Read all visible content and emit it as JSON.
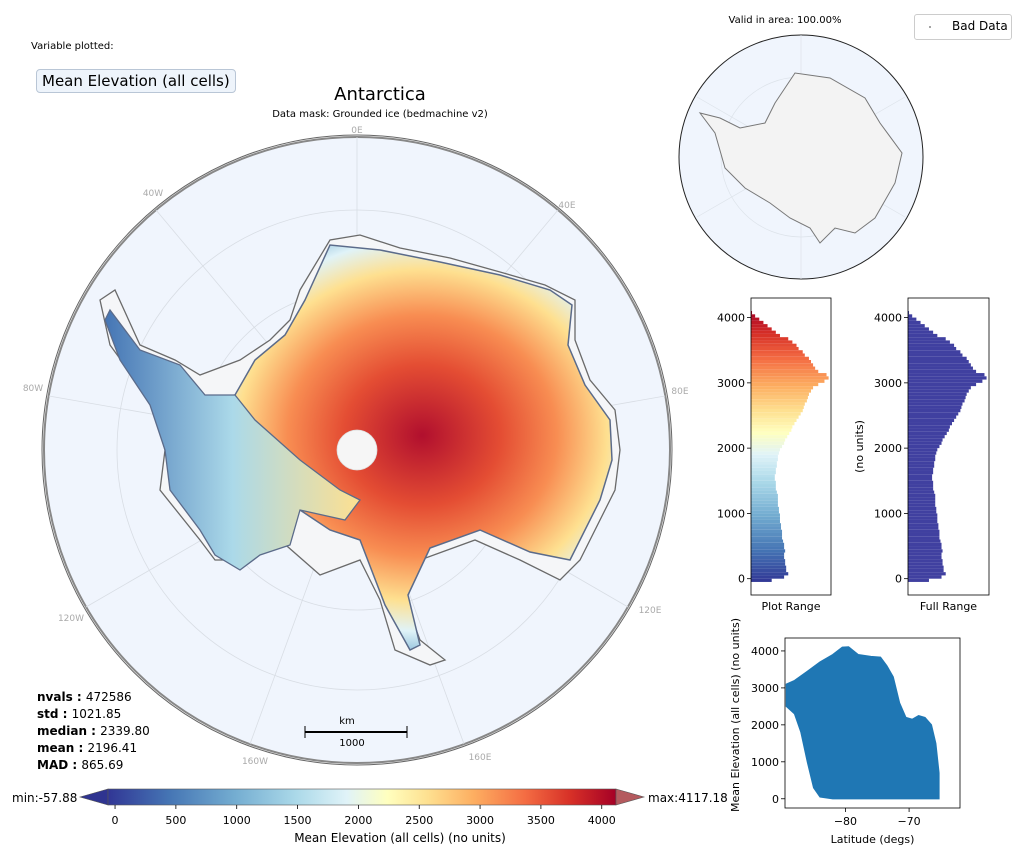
{
  "variable_label": "Variable plotted:",
  "variable_name": "Mean Elevation (all cells)",
  "map": {
    "title": "Antarctica",
    "subtitle": "Data mask:  Grounded ice (bedmachine v2)",
    "lon_labels": [
      "0E",
      "40E",
      "80E",
      "120E",
      "160E",
      "160W",
      "120W",
      "80W",
      "40W"
    ],
    "scale_unit": "km",
    "scale_value": "1000",
    "ocean_color": "#f0f5fd",
    "coast_color": "#6a6a6a"
  },
  "inset": {
    "valid_text": "Valid in area: 100.00%",
    "legend_label": "Bad Data"
  },
  "stats": [
    {
      "key": "nvals",
      "value": "472586"
    },
    {
      "key": "std",
      "value": "1021.85"
    },
    {
      "key": "median",
      "value": "2339.80"
    },
    {
      "key": "mean",
      "value": "2196.41"
    },
    {
      "key": "MAD",
      "value": "865.69"
    }
  ],
  "colorbar": {
    "min_label": "min:-57.88",
    "max_label": "max:4117.18",
    "ticks": [
      "0",
      "500",
      "1000",
      "1500",
      "2000",
      "2500",
      "3000",
      "3500",
      "4000"
    ],
    "label": "Mean Elevation (all cells) (no units)",
    "range": [
      -57.88,
      4117.18
    ],
    "colormap": "RdYlBu_r"
  },
  "chart_data": [
    {
      "type": "bar",
      "orientation": "horizontal",
      "xlabel": "Plot Range",
      "ylabel": "",
      "ylim": [
        -250,
        4300
      ],
      "yticks": [
        "0",
        "1000",
        "2000",
        "3000",
        "4000"
      ],
      "bins": [
        -50,
        0,
        50,
        100,
        150,
        200,
        250,
        300,
        350,
        400,
        450,
        500,
        550,
        600,
        650,
        700,
        750,
        800,
        850,
        900,
        950,
        1000,
        1050,
        1100,
        1150,
        1200,
        1250,
        1300,
        1350,
        1400,
        1450,
        1500,
        1550,
        1600,
        1650,
        1700,
        1750,
        1800,
        1850,
        1900,
        1950,
        2000,
        2050,
        2100,
        2150,
        2200,
        2250,
        2300,
        2350,
        2400,
        2450,
        2500,
        2550,
        2600,
        2650,
        2700,
        2750,
        2800,
        2850,
        2900,
        2950,
        3000,
        3050,
        3100,
        3150,
        3200,
        3250,
        3300,
        3350,
        3400,
        3450,
        3500,
        3550,
        3600,
        3650,
        3700,
        3750,
        3800,
        3850,
        3900,
        3950,
        4000,
        4050
      ],
      "counts": [
        2.0,
        3.2,
        3.6,
        3.4,
        3.4,
        3.3,
        3.3,
        3.2,
        3.2,
        3.3,
        3.2,
        3.2,
        3.1,
        3.0,
        3.0,
        3.0,
        2.9,
        2.9,
        2.8,
        2.8,
        2.8,
        2.7,
        2.7,
        2.6,
        2.6,
        2.6,
        2.6,
        2.5,
        2.4,
        2.4,
        2.4,
        2.3,
        2.3,
        2.4,
        2.4,
        2.5,
        2.5,
        2.6,
        2.6,
        2.7,
        2.8,
        3.0,
        3.2,
        3.3,
        3.5,
        3.7,
        3.9,
        4.0,
        4.2,
        4.4,
        4.6,
        4.8,
        5.0,
        5.1,
        5.2,
        5.4,
        5.5,
        5.6,
        5.8,
        6.0,
        6.5,
        7.1,
        7.5,
        7.3,
        6.5,
        6.2,
        6.0,
        5.8,
        5.6,
        5.2,
        5.0,
        4.6,
        4.4,
        4.0,
        3.6,
        2.8,
        2.4,
        2.0,
        1.6,
        1.2,
        0.8,
        0.4,
        0.1
      ]
    },
    {
      "type": "bar",
      "orientation": "horizontal",
      "xlabel": "Full Range",
      "ylabel": "(no units)",
      "ylim": [
        -250,
        4300
      ],
      "yticks": [
        "0",
        "1000",
        "2000",
        "3000",
        "4000"
      ],
      "bins": [
        -50,
        0,
        50,
        100,
        150,
        200,
        250,
        300,
        350,
        400,
        450,
        500,
        550,
        600,
        650,
        700,
        750,
        800,
        850,
        900,
        950,
        1000,
        1050,
        1100,
        1150,
        1200,
        1250,
        1300,
        1350,
        1400,
        1450,
        1500,
        1550,
        1600,
        1650,
        1700,
        1750,
        1800,
        1850,
        1900,
        1950,
        2000,
        2050,
        2100,
        2150,
        2200,
        2250,
        2300,
        2350,
        2400,
        2450,
        2500,
        2550,
        2600,
        2650,
        2700,
        2750,
        2800,
        2850,
        2900,
        2950,
        3000,
        3050,
        3100,
        3150,
        3200,
        3250,
        3300,
        3350,
        3400,
        3450,
        3500,
        3550,
        3600,
        3650,
        3700,
        3750,
        3800,
        3850,
        3900,
        3950,
        4000,
        4050
      ],
      "counts": [
        2.0,
        3.2,
        3.6,
        3.4,
        3.4,
        3.3,
        3.3,
        3.2,
        3.2,
        3.3,
        3.2,
        3.2,
        3.1,
        3.0,
        3.0,
        3.0,
        2.9,
        2.9,
        2.8,
        2.8,
        2.8,
        2.7,
        2.7,
        2.6,
        2.6,
        2.6,
        2.6,
        2.5,
        2.4,
        2.4,
        2.4,
        2.3,
        2.3,
        2.4,
        2.4,
        2.5,
        2.5,
        2.6,
        2.6,
        2.7,
        2.8,
        3.0,
        3.2,
        3.3,
        3.5,
        3.7,
        3.9,
        4.0,
        4.2,
        4.4,
        4.6,
        4.8,
        5.0,
        5.1,
        5.2,
        5.4,
        5.5,
        5.6,
        5.8,
        6.0,
        6.5,
        7.1,
        7.5,
        7.3,
        6.5,
        6.2,
        6.0,
        5.8,
        5.6,
        5.2,
        5.0,
        4.6,
        4.4,
        4.0,
        3.6,
        2.8,
        2.4,
        2.0,
        1.6,
        1.2,
        0.8,
        0.4,
        0.1
      ],
      "color": "#4040a0"
    },
    {
      "type": "scatter",
      "xlabel": "Latitude (degs)",
      "ylabel": "Mean Elevation (all cells) (no units)",
      "xlim": [
        -89.5,
        -62
      ],
      "ylim": [
        -250,
        4350
      ],
      "xticks": [
        -80,
        -70
      ],
      "yticks": [
        0,
        1000,
        2000,
        3000,
        4000
      ],
      "color": "#1f77b4",
      "envelope_upper": [
        [
          -89.3,
          3100
        ],
        [
          -88,
          3200
        ],
        [
          -86,
          3450
        ],
        [
          -84,
          3700
        ],
        [
          -82,
          3900
        ],
        [
          -80.5,
          4100
        ],
        [
          -79.5,
          4110
        ],
        [
          -78,
          3900
        ],
        [
          -76,
          3850
        ],
        [
          -74.5,
          3830
        ],
        [
          -73.5,
          3600
        ],
        [
          -72.5,
          3300
        ],
        [
          -71.5,
          2600
        ],
        [
          -70.5,
          2200
        ],
        [
          -69.5,
          2150
        ],
        [
          -68.5,
          2250
        ],
        [
          -67.5,
          2200
        ],
        [
          -66.5,
          2000
        ],
        [
          -65.8,
          1500
        ],
        [
          -65.3,
          700
        ]
      ],
      "envelope_lower": [
        [
          -89.3,
          2500
        ],
        [
          -88,
          2300
        ],
        [
          -87,
          1800
        ],
        [
          -86,
          1000
        ],
        [
          -85,
          300
        ],
        [
          -84,
          50
        ],
        [
          -82,
          0
        ],
        [
          -78,
          0
        ],
        [
          -74,
          0
        ],
        [
          -70,
          0
        ],
        [
          -66,
          0
        ],
        [
          -65.3,
          0
        ]
      ]
    }
  ]
}
